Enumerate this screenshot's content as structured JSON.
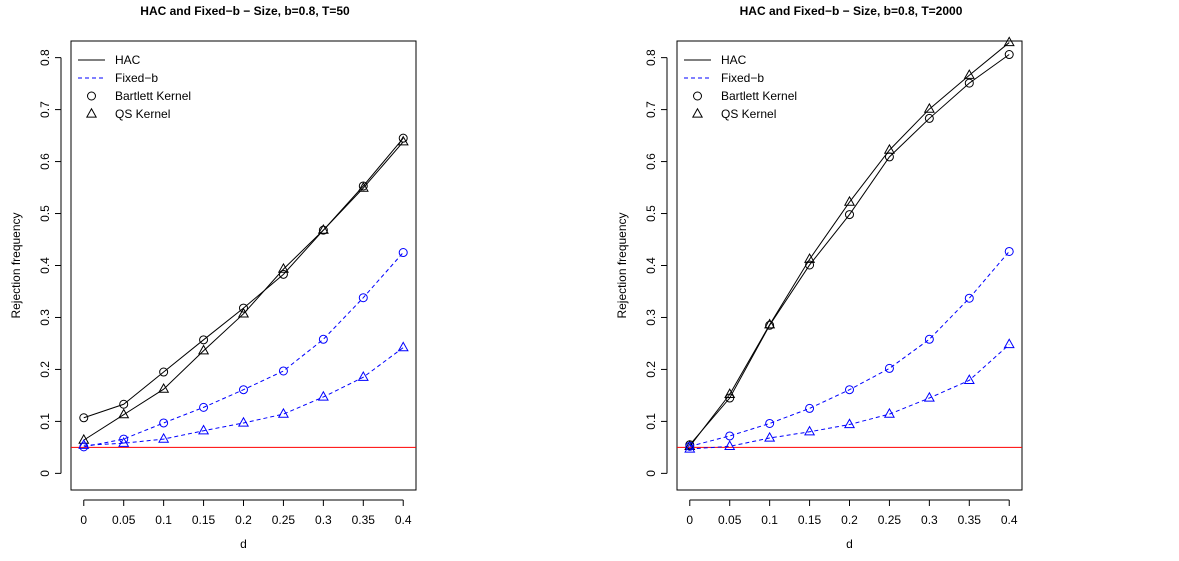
{
  "chart_data": [
    {
      "type": "line",
      "title": "HAC and Fixed−b − Size, b=0.8, T=50",
      "xlabel": "d",
      "ylabel": "Rejection frequency",
      "x": [
        0,
        0.05,
        0.1,
        0.15,
        0.2,
        0.25,
        0.3,
        0.35,
        0.4
      ],
      "x_tick_labels": [
        "0",
        "0.05",
        "0.1",
        "0.15",
        "0.2",
        "0.25",
        "0.3",
        "0.35",
        "0.4"
      ],
      "y_ticks": [
        0,
        0.1,
        0.2,
        0.3,
        0.4,
        0.5,
        0.6,
        0.7,
        0.8
      ],
      "y_tick_labels": [
        "0",
        "0.1",
        "0.2",
        "0.3",
        "0.4",
        "0.5",
        "0.6",
        "0.7",
        "0.8"
      ],
      "xlim": [
        -0.016,
        0.416
      ],
      "ylim": [
        -0.032,
        0.832
      ],
      "reference_line": {
        "y": 0.05,
        "color": "#ff0000"
      },
      "legend": {
        "position": "top-left",
        "entries": [
          "HAC",
          "Fixed−b",
          "Bartlett Kernel",
          "QS Kernel"
        ]
      },
      "series": [
        {
          "method": "HAC",
          "kernel": "Bartlett",
          "color": "#000000",
          "line": "solid",
          "marker": "circle",
          "values": [
            0.107,
            0.133,
            0.195,
            0.257,
            0.318,
            0.383,
            0.468,
            0.553,
            0.645
          ]
        },
        {
          "method": "HAC",
          "kernel": "QS",
          "color": "#000000",
          "line": "solid",
          "marker": "triangle",
          "values": [
            0.064,
            0.113,
            0.162,
            0.236,
            0.307,
            0.393,
            0.468,
            0.549,
            0.638
          ]
        },
        {
          "method": "Fixed-b",
          "kernel": "Bartlett",
          "color": "#0000ff",
          "line": "dashed",
          "marker": "circle",
          "values": [
            0.051,
            0.066,
            0.097,
            0.127,
            0.161,
            0.197,
            0.258,
            0.338,
            0.425
          ]
        },
        {
          "method": "Fixed-b",
          "kernel": "QS",
          "color": "#0000ff",
          "line": "dashed",
          "marker": "triangle",
          "values": [
            0.054,
            0.058,
            0.066,
            0.082,
            0.097,
            0.114,
            0.147,
            0.185,
            0.242
          ]
        }
      ]
    },
    {
      "type": "line",
      "title": "HAC and Fixed−b − Size, b=0.8, T=2000",
      "xlabel": "d",
      "ylabel": "Rejection frequency",
      "x": [
        0,
        0.05,
        0.1,
        0.15,
        0.2,
        0.25,
        0.3,
        0.35,
        0.4
      ],
      "x_tick_labels": [
        "0",
        "0.05",
        "0.1",
        "0.15",
        "0.2",
        "0.25",
        "0.3",
        "0.35",
        "0.4"
      ],
      "y_ticks": [
        0,
        0.1,
        0.2,
        0.3,
        0.4,
        0.5,
        0.6,
        0.7,
        0.8
      ],
      "y_tick_labels": [
        "0",
        "0.1",
        "0.2",
        "0.3",
        "0.4",
        "0.5",
        "0.6",
        "0.7",
        "0.8"
      ],
      "xlim": [
        -0.016,
        0.416
      ],
      "ylim": [
        -0.032,
        0.832
      ],
      "reference_line": {
        "y": 0.05,
        "color": "#ff0000"
      },
      "legend": {
        "position": "top-left",
        "entries": [
          "HAC",
          "Fixed−b",
          "Bartlett Kernel",
          "QS Kernel"
        ]
      },
      "series": [
        {
          "method": "HAC",
          "kernel": "Bartlett",
          "color": "#000000",
          "line": "solid",
          "marker": "circle",
          "values": [
            0.055,
            0.145,
            0.285,
            0.401,
            0.498,
            0.609,
            0.683,
            0.751,
            0.806
          ]
        },
        {
          "method": "HAC",
          "kernel": "QS",
          "color": "#000000",
          "line": "solid",
          "marker": "triangle",
          "values": [
            0.052,
            0.152,
            0.286,
            0.412,
            0.522,
            0.622,
            0.701,
            0.766,
            0.829
          ]
        },
        {
          "method": "Fixed-b",
          "kernel": "Bartlett",
          "color": "#0000ff",
          "line": "dashed",
          "marker": "circle",
          "values": [
            0.052,
            0.072,
            0.096,
            0.125,
            0.161,
            0.202,
            0.258,
            0.337,
            0.427
          ]
        },
        {
          "method": "Fixed-b",
          "kernel": "QS",
          "color": "#0000ff",
          "line": "dashed",
          "marker": "triangle",
          "values": [
            0.047,
            0.052,
            0.068,
            0.08,
            0.094,
            0.114,
            0.145,
            0.179,
            0.248
          ]
        }
      ]
    }
  ]
}
